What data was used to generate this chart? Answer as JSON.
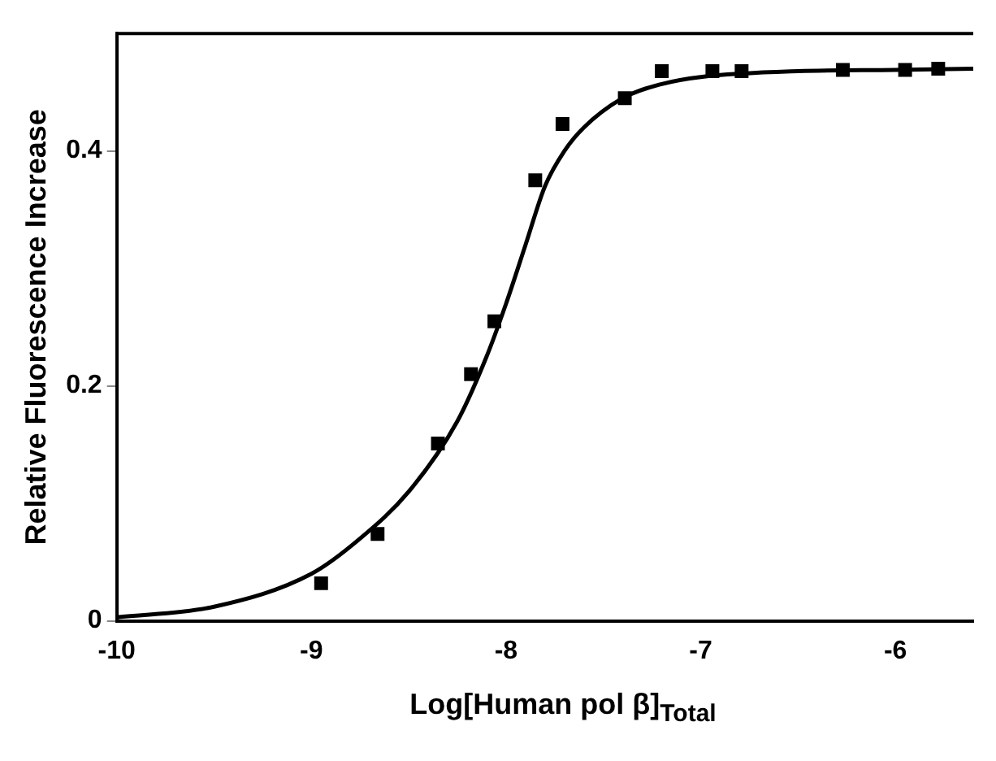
{
  "chart_data": {
    "type": "scatter",
    "xlabel": "Log[Human pol β]$_{Total}$",
    "ylabel": "Relative Fluorescence Increase",
    "xlim": [
      -10,
      -5.6
    ],
    "xticks": [
      -10,
      -9,
      -8,
      -7,
      -6
    ],
    "ylim": [
      0,
      0.5
    ],
    "yticks": [
      0,
      0.2,
      0.4
    ],
    "grid": false,
    "legend": false,
    "series": [
      {
        "color": "#000000",
        "marker": "square",
        "x": [
          -8.95,
          -8.66,
          -8.35,
          -8.18,
          -8.06,
          -7.85,
          -7.71,
          -7.39,
          -7.2,
          -6.94,
          -6.79,
          -6.27,
          -5.95,
          -5.78
        ],
        "values": [
          0.032,
          0.074,
          0.151,
          0.21,
          0.255,
          0.375,
          0.423,
          0.445,
          0.468,
          0.468,
          0.468,
          0.469,
          0.469,
          0.47
        ]
      },
      {
        "type": "line",
        "color": "#000000",
        "marker": "none",
        "line_style": "solid",
        "x": [
          -10,
          -9.5,
          -9,
          -8.75,
          -8.5,
          -8.25,
          -8.1,
          -8,
          -7.9,
          -7.8,
          -7.7,
          -7.6,
          -7.4,
          -7.2,
          -7,
          -6.5,
          -6,
          -5.6
        ],
        "values": [
          0.003,
          0.012,
          0.04,
          0.07,
          0.11,
          0.17,
          0.225,
          0.27,
          0.32,
          0.37,
          0.4,
          0.42,
          0.445,
          0.457,
          0.463,
          0.468,
          0.469,
          0.47
        ]
      }
    ]
  }
}
